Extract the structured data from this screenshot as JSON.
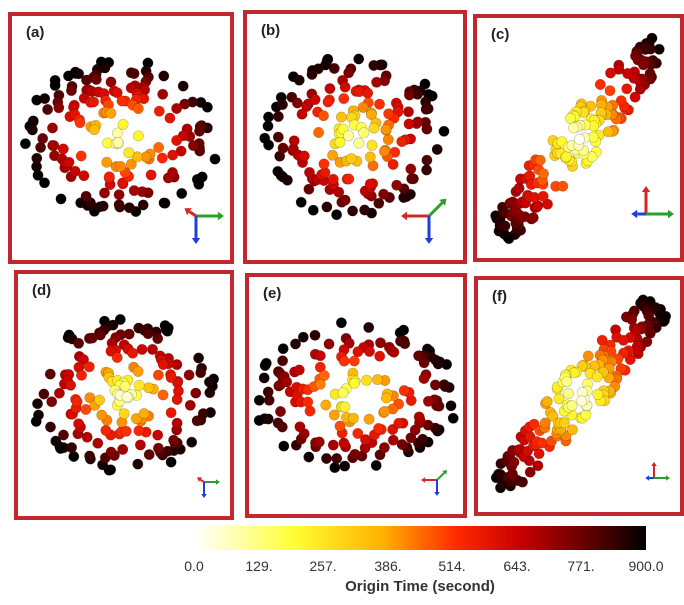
{
  "panels": [
    {
      "label": "(a)",
      "pattern": "circle",
      "triad": "xy-right"
    },
    {
      "label": "(b)",
      "pattern": "circle-tall",
      "triad": "xy-left"
    },
    {
      "label": "(c)",
      "pattern": "diagonal",
      "triad": "xz"
    },
    {
      "label": "(d)",
      "pattern": "circle",
      "triad": "xy-right-small"
    },
    {
      "label": "(e)",
      "pattern": "circle-wide",
      "triad": "xy-left-small"
    },
    {
      "label": "(f)",
      "pattern": "diagonal",
      "triad": "xz-small"
    }
  ],
  "colorbar": {
    "title": "Origin Time (second)",
    "ticks": [
      "0.0",
      "129.",
      "257.",
      "386.",
      "514.",
      "643.",
      "771.",
      "900.0"
    ],
    "min": 0,
    "max": 900,
    "colors": [
      "#ffffff",
      "#ffff33",
      "#ffb000",
      "#ff2a00",
      "#c80000",
      "#6a0000",
      "#000000"
    ]
  },
  "axis_colors": {
    "x": "#2aa02a",
    "y": "#1f3fd8",
    "z": "#d62728"
  }
}
